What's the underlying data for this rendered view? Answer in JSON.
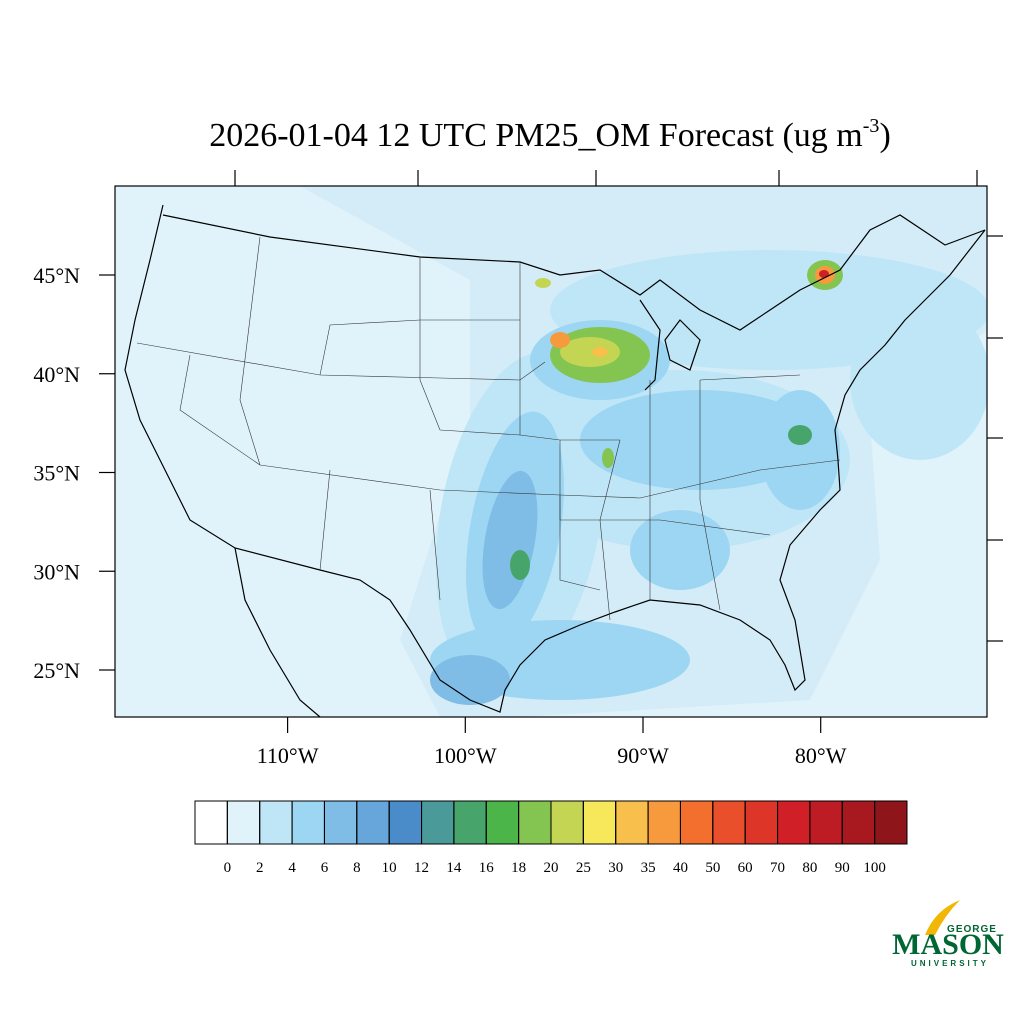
{
  "map": {
    "title": {
      "main": "2026-01-04 12 UTC PM25_OM Forecast (ug m",
      "sup": "-3",
      "end": ")"
    },
    "lat_ticks": [
      {
        "value": 45,
        "label": "45°N"
      },
      {
        "value": 40,
        "label": "40°N"
      },
      {
        "value": 35,
        "label": "35°N"
      },
      {
        "value": 30,
        "label": "30°N"
      },
      {
        "value": 25,
        "label": "25°N"
      }
    ],
    "lon_ticks": [
      {
        "value": -110,
        "label": "110°W"
      },
      {
        "value": -100,
        "label": "100°W"
      },
      {
        "value": -90,
        "label": "90°W"
      },
      {
        "value": -80,
        "label": "80°W"
      }
    ],
    "colorbar": {
      "levels": [
        0,
        2,
        4,
        6,
        8,
        10,
        12,
        14,
        16,
        18,
        20,
        25,
        30,
        35,
        40,
        50,
        60,
        70,
        80,
        90,
        100
      ],
      "colors": [
        "#ffffff",
        "#e0f3fb",
        "#bfe6f7",
        "#9dd6f3",
        "#80bde6",
        "#67a6da",
        "#4a8bc9",
        "#4a9a9a",
        "#47a56c",
        "#4cb54a",
        "#84c552",
        "#c3d553",
        "#f7e75b",
        "#f8bf4c",
        "#f79a3e",
        "#f26f2e",
        "#e84f2a",
        "#dd3527",
        "#d01f27",
        "#bd1c24",
        "#a8191f",
        "#8e1519"
      ]
    },
    "logo": {
      "top": "GEORGE",
      "main": "MASON",
      "bottom": "UNIVERSITY"
    }
  }
}
